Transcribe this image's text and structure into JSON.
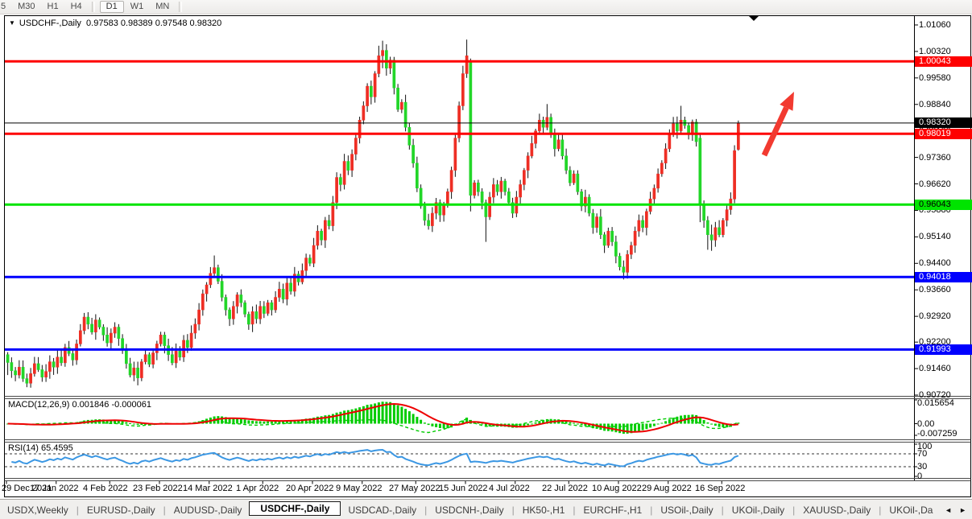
{
  "toolbar": {
    "timeframes": [
      "5",
      "M30",
      "H1",
      "H4",
      "D1",
      "W1",
      "MN"
    ],
    "active": "D1"
  },
  "title": {
    "symbol": "USDCHF-,Daily",
    "open": "0.97583",
    "high": "0.98389",
    "low": "0.97548",
    "close": "0.98320"
  },
  "price_axis": {
    "ticks": [
      "1.01060",
      "1.00320",
      "0.99580",
      "0.98840",
      "0.98100",
      "0.97360",
      "0.96620",
      "0.95880",
      "0.95140",
      "0.94400",
      "0.93660",
      "0.92920",
      "0.92200",
      "0.91460",
      "0.90720"
    ]
  },
  "hlines": [
    {
      "price": 1.00043,
      "label": "1.00043",
      "color": "#fe0000",
      "thickness": 3,
      "label_bg": "#fe0000",
      "label_fg": "#ffffff"
    },
    {
      "price": 0.9832,
      "label": "0.98320",
      "color": "#000000",
      "thickness": 1,
      "label_bg": "#000000",
      "label_fg": "#ffffff"
    },
    {
      "price": 0.98019,
      "label": "0.98019",
      "color": "#fe0000",
      "thickness": 3,
      "label_bg": "#fe0000",
      "label_fg": "#ffffff"
    },
    {
      "price": 0.96043,
      "label": "0.96043",
      "color": "#00e400",
      "thickness": 3,
      "label_bg": "#00e400",
      "label_fg": "#000000"
    },
    {
      "price": 0.94018,
      "label": "0.94018",
      "color": "#0000fe",
      "thickness": 3,
      "label_bg": "#0000fe",
      "label_fg": "#ffffff"
    },
    {
      "price": 0.91993,
      "label": "0.91993",
      "color": "#0000fe",
      "thickness": 3,
      "label_bg": "#0000fe",
      "label_fg": "#ffffff"
    }
  ],
  "indicators": {
    "macd": {
      "label": "MACD(12,26,9)",
      "value_main": "0.001846",
      "value_signal": "-0.000061",
      "fast": 12,
      "slow": 26,
      "signal": 9,
      "ticks": {
        "max": "0.015654",
        "zero": "0.00",
        "min": "-0.007259"
      },
      "hist_color": "#00cc00",
      "signal_color": "#ee0000"
    },
    "rsi": {
      "label": "RSI(14)",
      "value": "65.4595",
      "period": 14,
      "levels": [
        70,
        30
      ],
      "ticks": [
        "100",
        "70",
        "30",
        "0"
      ],
      "line_color": "#3b97e3"
    }
  },
  "x_axis": {
    "labels": [
      "29 Dec 2021",
      "17 Jan 2022",
      "4 Feb 2022",
      "23 Feb 2022",
      "14 Mar 2022",
      "1 Apr 2022",
      "20 Apr 2022",
      "9 May 2022",
      "27 May 2022",
      "15 Jun 2022",
      "4 Jul 2022",
      "22 Jul 2022",
      "10 Aug 2022",
      "29 Aug 2022",
      "16 Sep 2022"
    ],
    "label_bars": [
      0,
      13,
      27,
      40,
      53,
      67,
      80,
      93,
      107,
      120,
      133,
      147,
      160,
      173,
      187
    ]
  },
  "chart_data": {
    "type": "candlestick",
    "symbol": "USDCHF",
    "timeframe": "Daily",
    "last_candle_ohlc": [
      0.97583,
      0.98389,
      0.97548,
      0.9832
    ],
    "axis_max": 1.0106,
    "axis_min": 0.9072,
    "first_open": 0.9185,
    "closes": [
      0.9163,
      0.914,
      0.9128,
      0.915,
      0.9118,
      0.9105,
      0.9132,
      0.916,
      0.9143,
      0.9122,
      0.9138,
      0.9165,
      0.915,
      0.9178,
      0.9162,
      0.9205,
      0.9188,
      0.917,
      0.9215,
      0.9252,
      0.929,
      0.927,
      0.9248,
      0.9282,
      0.9262,
      0.924,
      0.9218,
      0.9245,
      0.9262,
      0.923,
      0.92,
      0.916,
      0.9128,
      0.9148,
      0.912,
      0.9165,
      0.9185,
      0.9158,
      0.919,
      0.9215,
      0.924,
      0.921,
      0.9185,
      0.9162,
      0.9195,
      0.9178,
      0.9225,
      0.9205,
      0.9245,
      0.927,
      0.931,
      0.9355,
      0.938,
      0.9412,
      0.9428,
      0.939,
      0.9345,
      0.931,
      0.9285,
      0.932,
      0.9352,
      0.933,
      0.9298,
      0.927,
      0.9305,
      0.9285,
      0.932,
      0.93,
      0.933,
      0.931,
      0.9345,
      0.9368,
      0.934,
      0.9385,
      0.9362,
      0.941,
      0.9388,
      0.942,
      0.9455,
      0.944,
      0.949,
      0.953,
      0.9505,
      0.956,
      0.9545,
      0.961,
      0.968,
      0.966,
      0.9725,
      0.97,
      0.9745,
      0.979,
      0.984,
      0.988,
      0.9935,
      0.9905,
      0.997,
      1.002,
      1.0035,
      0.9985,
      1.0008,
      0.993,
      0.987,
      0.989,
      0.982,
      0.977,
      0.972,
      0.965,
      0.96,
      0.956,
      0.9545,
      0.958,
      0.961,
      0.9575,
      0.9605,
      0.964,
      0.97,
      0.979,
      0.988,
      0.997,
      1.002,
      0.963,
      0.9665,
      0.964,
      0.961,
      0.957,
      0.9625,
      0.966,
      0.964,
      0.967,
      0.964,
      0.961,
      0.958,
      0.9625,
      0.966,
      0.97,
      0.974,
      0.9775,
      0.981,
      0.984,
      0.982,
      0.9848,
      0.98,
      0.976,
      0.9785,
      0.974,
      0.97,
      0.9665,
      0.969,
      0.964,
      0.96,
      0.9625,
      0.958,
      0.954,
      0.957,
      0.952,
      0.949,
      0.953,
      0.95,
      0.946,
      0.943,
      0.9415,
      0.9465,
      0.949,
      0.953,
      0.956,
      0.954,
      0.9585,
      0.962,
      0.965,
      0.969,
      0.972,
      0.976,
      0.98,
      0.983,
      0.981,
      0.984,
      0.9825,
      0.98,
      0.9835,
      0.978,
      0.9605,
      0.956,
      0.952,
      0.9505,
      0.954,
      0.952,
      0.956,
      0.959,
      0.962,
      0.9755,
      0.9832
    ],
    "overrides": {
      "0": [
        0.9185,
        0.9192,
        0.9128,
        0.9163
      ],
      "54": [
        0.9412,
        0.9462,
        0.94,
        0.9428
      ],
      "97": [
        0.997,
        1.0048,
        0.996,
        1.002
      ],
      "98": [
        1.002,
        1.0062,
        0.9985,
        1.0035
      ],
      "119": [
        0.988,
        0.9992,
        0.9868,
        0.997
      ],
      "120": [
        0.997,
        1.0065,
        0.9958,
        1.002
      ],
      "121": [
        1.0005,
        1.0012,
        0.9585,
        0.963
      ],
      "125": [
        0.961,
        0.9618,
        0.95,
        0.957
      ],
      "141": [
        0.982,
        0.9885,
        0.9812,
        0.9848
      ],
      "161": [
        0.943,
        0.9448,
        0.9395,
        0.9415
      ],
      "176": [
        0.981,
        0.988,
        0.9802,
        0.984
      ],
      "181": [
        0.979,
        0.9802,
        0.9555,
        0.9605
      ],
      "183": [
        0.956,
        0.9572,
        0.9478,
        0.952
      ],
      "184": [
        0.952,
        0.9548,
        0.9475,
        0.9505
      ],
      "190": [
        0.962,
        0.977,
        0.9608,
        0.9755
      ],
      "191": [
        0.97583,
        0.98389,
        0.97548,
        0.9832
      ]
    },
    "colors": {
      "up": "#ee2e24",
      "down": "#22d628",
      "wick": "#111111"
    }
  },
  "annotations": {
    "arrow_color": "#f23a30"
  },
  "tabs": {
    "items": [
      "USDX,Weekly",
      "EURUSD-,Daily",
      "AUDUSD-,Daily",
      "USDCHF-,Daily",
      "USDCAD-,Daily",
      "USDCNH-,Daily",
      "HK50-,H1",
      "EURCHF-,H1",
      "USOil-,Daily",
      "UKOil-,Daily",
      "XAUUSD-,Daily",
      "UKOil-,Da"
    ],
    "active_index": 3,
    "scroll_left": "◄",
    "scroll_right": "►"
  }
}
